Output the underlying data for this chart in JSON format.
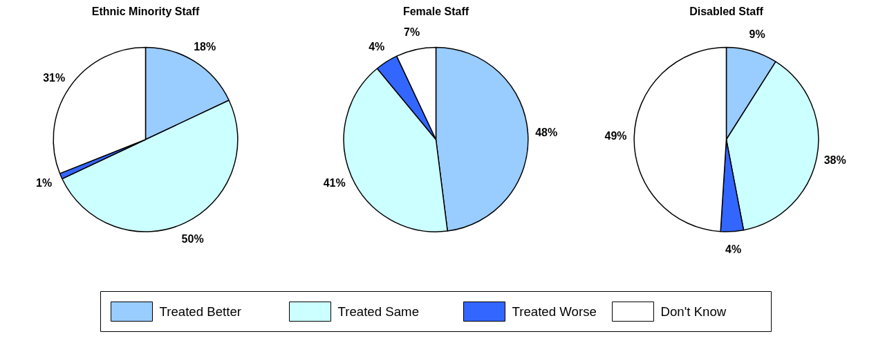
{
  "chart_data": [
    {
      "type": "pie",
      "title": "Ethnic Minority Staff",
      "categories": [
        "Treated Better",
        "Treated Same",
        "Treated Worse",
        "Don't Know"
      ],
      "values": [
        18,
        50,
        1,
        31
      ],
      "value_labels": [
        "18%",
        "50%",
        "1%",
        "31%"
      ],
      "colors": [
        "#99ccff",
        "#ccffff",
        "#3366ff",
        "#ffffff"
      ],
      "legend": "bottom"
    },
    {
      "type": "pie",
      "title": "Female Staff",
      "categories": [
        null,
        null,
        null,
        null
      ],
      "values": [
        48,
        41,
        4,
        7
      ],
      "value_labels": [
        "48%",
        "41%",
        "4%",
        "7%"
      ],
      "colors": [
        "#99ccff",
        "#ccffff",
        "#3366ff",
        "#ffffff"
      ]
    },
    {
      "type": "pie",
      "title": "Disabled Staff",
      "categories": [
        null,
        null,
        null,
        null
      ],
      "values": [
        9,
        38,
        4,
        49
      ],
      "value_labels": [
        "9%",
        "38%",
        "4%",
        "49%"
      ],
      "colors": [
        "#99ccff",
        "#ccffff",
        "#3366ff",
        "#ffffff"
      ]
    }
  ]
}
